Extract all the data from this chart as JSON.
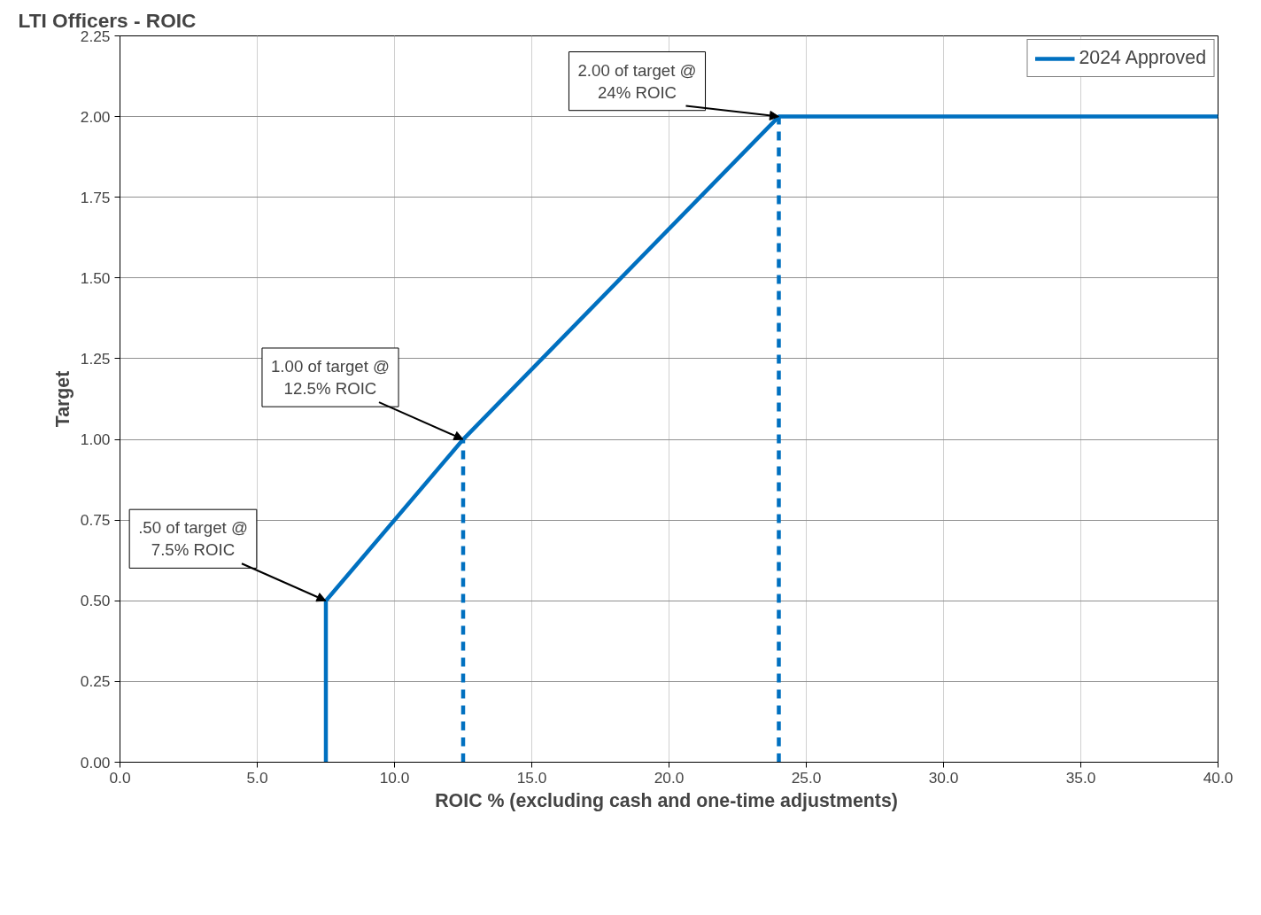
{
  "chart_data": {
    "type": "line",
    "title": "LTI Officers - ROIC",
    "xlabel": "ROIC %  (excluding cash and one-time adjustments)",
    "ylabel": "Target",
    "series": [
      {
        "name": "2024 Approved",
        "color": "#0070c0",
        "x": [
          7.5,
          7.5,
          12.5,
          24,
          40
        ],
        "values": [
          0,
          0.5,
          1.0,
          2.0,
          2.0
        ],
        "line_style": "solid"
      },
      {
        "color": "#0070c0",
        "x": [
          12.5,
          12.5
        ],
        "values": [
          0,
          1.0
        ],
        "line_style": "dashed"
      },
      {
        "color": "#0070c0",
        "x": [
          24,
          24
        ],
        "values": [
          0,
          2.0
        ],
        "line_style": "dashed"
      }
    ],
    "annotations": [
      {
        "text": ".50 of target @\n7.5% ROIC",
        "x": 7.5,
        "y": 0.5
      },
      {
        "text": "1.00 of target @\n12.5% ROIC",
        "x": 12.5,
        "y": 1.0
      },
      {
        "text": "2.00 of target @\n24% ROIC",
        "x": 24,
        "y": 2.0
      }
    ],
    "xlim": [
      0,
      40
    ],
    "ylim": [
      0,
      2.25
    ],
    "xticks": [
      {
        "value": 0,
        "label": "0.0"
      },
      {
        "value": 5,
        "label": "5.0"
      },
      {
        "value": 10,
        "label": "10.0"
      },
      {
        "value": 15,
        "label": "15.0"
      },
      {
        "value": 20,
        "label": "20.0"
      },
      {
        "value": 25,
        "label": "25.0"
      },
      {
        "value": 30,
        "label": "30.0"
      },
      {
        "value": 35,
        "label": "35.0"
      },
      {
        "value": 40,
        "label": "40.0"
      }
    ],
    "yticks": [
      {
        "value": 0,
        "label": "0.00"
      },
      {
        "value": 0.25,
        "label": "0.25"
      },
      {
        "value": 0.5,
        "label": "0.50"
      },
      {
        "value": 0.75,
        "label": "0.75"
      },
      {
        "value": 1,
        "label": "1.00"
      },
      {
        "value": 1.25,
        "label": "1.25"
      },
      {
        "value": 1.5,
        "label": "1.50"
      },
      {
        "value": 1.75,
        "label": "1.75"
      },
      {
        "value": 2,
        "label": "2.00"
      },
      {
        "value": 2.25,
        "label": "2.25"
      }
    ],
    "grid": true,
    "legend": "top right",
    "marker": "none"
  }
}
